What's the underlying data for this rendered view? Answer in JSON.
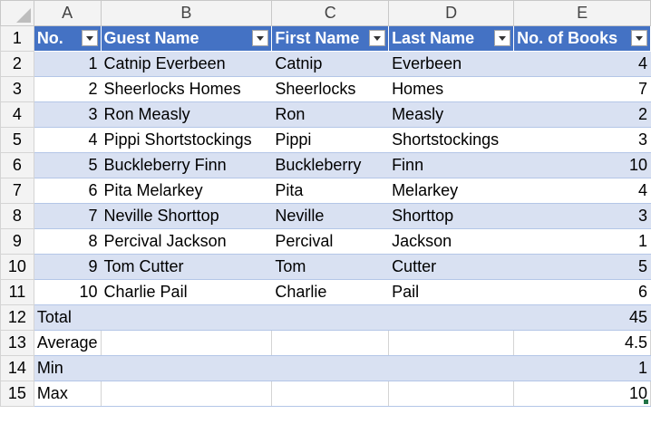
{
  "columns": [
    "A",
    "B",
    "C",
    "D",
    "E"
  ],
  "row_numbers": [
    "1",
    "2",
    "3",
    "4",
    "5",
    "6",
    "7",
    "8",
    "9",
    "10",
    "11",
    "12",
    "13",
    "14",
    "15"
  ],
  "headers": [
    "No.",
    "Guest Name",
    "First Name",
    "Last Name",
    "No. of Books"
  ],
  "rows": [
    [
      "1",
      "Catnip Everbeen",
      "Catnip",
      "Everbeen",
      "4"
    ],
    [
      "2",
      "Sheerlocks Homes",
      "Sheerlocks",
      "Homes",
      "7"
    ],
    [
      "3",
      "Ron Measly",
      "Ron",
      "Measly",
      "2"
    ],
    [
      "4",
      "Pippi Shortstockings",
      "Pippi",
      "Shortstockings",
      "3"
    ],
    [
      "5",
      "Buckleberry Finn",
      "Buckleberry",
      "Finn",
      "10"
    ],
    [
      "6",
      "Pita Melarkey",
      "Pita",
      "Melarkey",
      "4"
    ],
    [
      "7",
      "Neville Shorttop",
      "Neville",
      "Shorttop",
      "3"
    ],
    [
      "8",
      "Percival Jackson",
      "Percival",
      "Jackson",
      "1"
    ],
    [
      "9",
      "Tom Cutter",
      "Tom",
      "Cutter",
      "5"
    ],
    [
      "10",
      "Charlie Pail",
      "Charlie",
      "Pail",
      "6"
    ]
  ],
  "summary": [
    [
      "Total",
      "45"
    ],
    [
      "Average",
      "4.5"
    ],
    [
      "Min",
      "1"
    ],
    [
      "Max",
      "10"
    ]
  ],
  "colors": {
    "header_fill": "#4472c4",
    "band_fill": "#d9e1f2"
  }
}
